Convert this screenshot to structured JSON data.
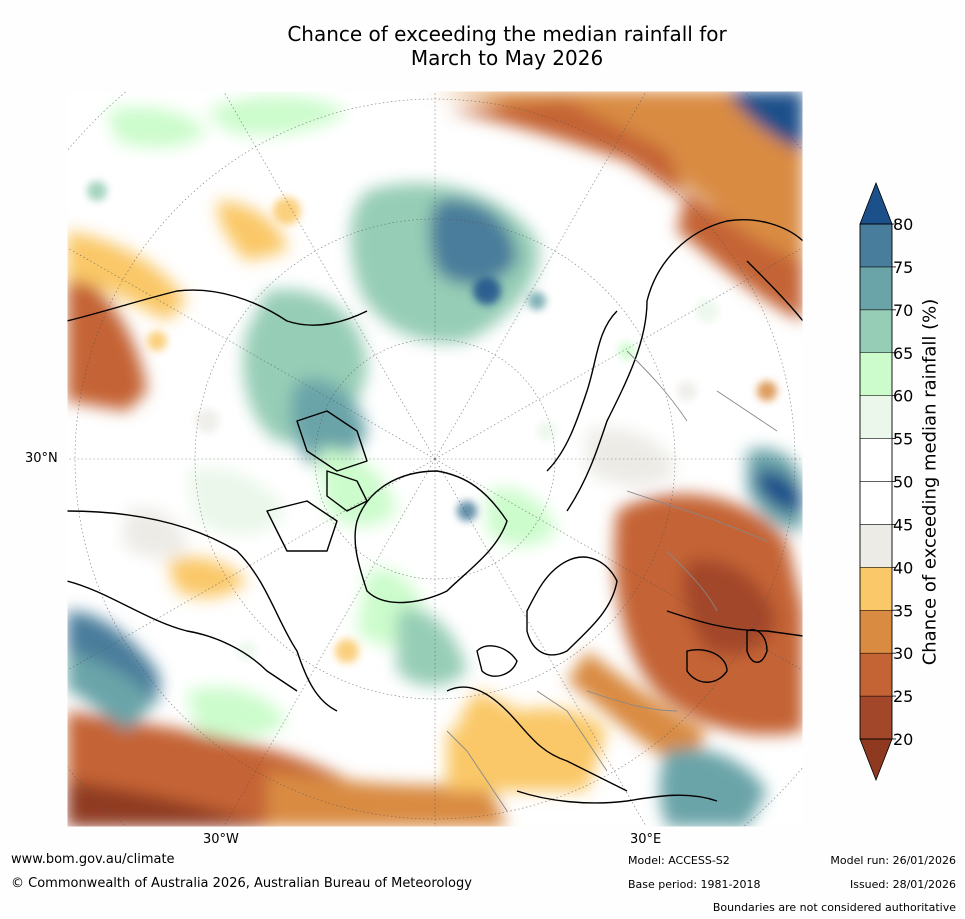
{
  "title": {
    "line1": "Chance of exceeding the median rainfall for",
    "line2": "March to May 2026"
  },
  "map": {
    "projection": "north polar stereographic",
    "lat_label": "30°N",
    "lon_labels": [
      "30°W",
      "30°E"
    ]
  },
  "colorbar": {
    "label": "Chance of exceeding median rainfall (%)",
    "ticks": [
      "20",
      "25",
      "30",
      "35",
      "40",
      "45",
      "50",
      "55",
      "60",
      "65",
      "70",
      "75",
      "80"
    ],
    "colors": [
      "#a3472a",
      "#c46334",
      "#d98b42",
      "#fac868",
      "#ecebe6",
      "#ffffff",
      "#ffffff",
      "#eaf7ea",
      "#ccfccc",
      "#96cdb6",
      "#6aa4a9",
      "#487d9b"
    ],
    "under_color": "#8f3a20",
    "over_color": "#1b508a"
  },
  "footer": {
    "website": "www.bom.gov.au/climate",
    "copyright": "© Commonwealth of Australia 2026, Australian Bureau of Meteorology",
    "model": "Model: ACCESS-S2",
    "base_period": "Base period: 1981-2018",
    "model_run": "Model run: 26/01/2026",
    "issued": "Issued: 28/01/2026",
    "disclaimer": "Boundaries are not considered authoritative"
  }
}
